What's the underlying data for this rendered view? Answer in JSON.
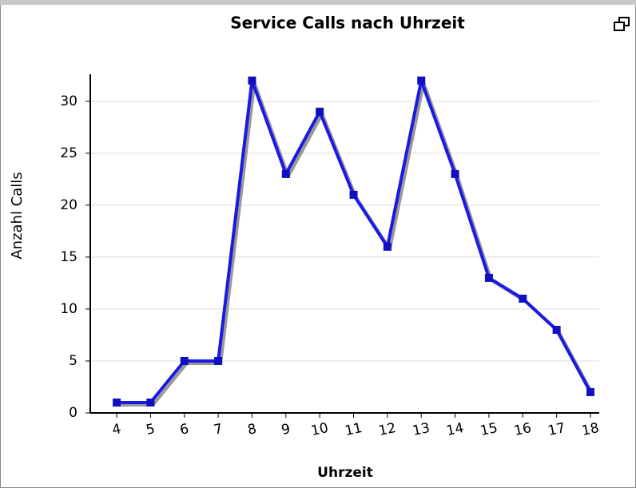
{
  "chart_data": {
    "type": "line",
    "title": "Service Calls nach Uhrzeit",
    "x_label": "Uhrzeit",
    "y_label": "Anzahl Calls",
    "x": [
      4,
      5,
      6,
      7,
      8,
      9,
      10,
      11,
      12,
      13,
      14,
      15,
      16,
      17,
      18
    ],
    "series": [
      {
        "name": "Service Calls",
        "color": "#1a1ae6",
        "values": [
          1,
          1,
          5,
          5,
          32,
          23,
          29,
          21,
          16,
          32,
          23,
          13,
          11,
          8,
          2
        ]
      }
    ],
    "xlim": [
      3.22,
      18.26
    ],
    "xticks": [
      4,
      5,
      6,
      7,
      8,
      9,
      10,
      11,
      12,
      13,
      14,
      15,
      16,
      17,
      18
    ],
    "ylim": [
      0,
      32.6
    ],
    "yticks": [
      0,
      5,
      10,
      15,
      20,
      25,
      30
    ],
    "grid": true
  }
}
